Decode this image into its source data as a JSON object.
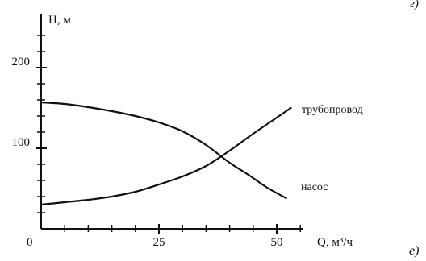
{
  "chart_data": {
    "type": "line",
    "ylabel": "H, м",
    "xlabel": "Q, м³/ч",
    "origin_label": "0",
    "x_ticks": [
      25,
      50
    ],
    "y_ticks": [
      100,
      200
    ],
    "xlim": [
      0,
      58
    ],
    "ylim": [
      0,
      245
    ],
    "series": [
      {
        "name": "насос",
        "x": [
          0,
          5,
          10,
          15,
          20,
          25,
          30,
          35,
          40,
          44,
          48,
          52
        ],
        "y": [
          157,
          155,
          151,
          146,
          140,
          132,
          121,
          104,
          82,
          67,
          51,
          38
        ]
      },
      {
        "name": "трубопровод",
        "x": [
          0,
          5,
          10,
          15,
          20,
          25,
          30,
          35,
          40,
          45,
          50,
          53
        ],
        "y": [
          30,
          33,
          36,
          40,
          46,
          55,
          65,
          78,
          97,
          118,
          138,
          150
        ]
      }
    ],
    "annotations": {
      "top_right": "г)",
      "bottom_right": "е)"
    }
  }
}
